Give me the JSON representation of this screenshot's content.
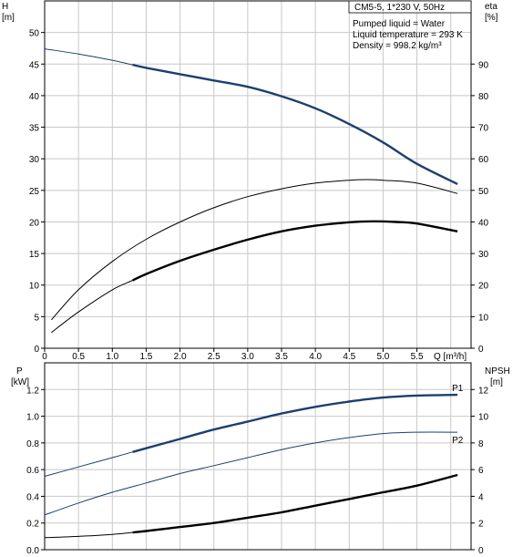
{
  "info_box": {
    "title": "CM5-5, 1*230 V, 50Hz",
    "line1": "Pumped liquid = Water",
    "line2": "Liquid temperature = 293 K",
    "line3": "Density = 998.2 kg/m³"
  },
  "chart_data": [
    {
      "type": "line",
      "panel": "upper",
      "xlabel": "Q [m³/h]",
      "ylabel": "H\n[m]",
      "y2label": "eta\n[%]",
      "xlim": [
        0,
        6.3
      ],
      "ylim": [
        0,
        55
      ],
      "y2lim": [
        0,
        110
      ],
      "xticks": [
        "0",
        "0.5",
        "1.0",
        "1.5",
        "2.0",
        "2.5",
        "3.0",
        "3.5",
        "4.0",
        "4.5",
        "5.0",
        "5.5"
      ],
      "yticks": [
        "0",
        "5",
        "10",
        "15",
        "20",
        "25",
        "30",
        "35",
        "40",
        "45",
        "50"
      ],
      "y2ticks": [
        "0",
        "10",
        "20",
        "30",
        "40",
        "50",
        "60",
        "70",
        "80",
        "90"
      ],
      "grid": true,
      "series": [
        {
          "axis": "left",
          "color": "#1c3f6e",
          "x": [
            0,
            0.5,
            1.0,
            1.5,
            2.0,
            2.5,
            3.0,
            3.5,
            4.0,
            4.5,
            5.0,
            5.5,
            6.1
          ],
          "y": [
            47.4,
            46.6,
            45.6,
            44.4,
            43.4,
            42.4,
            41.4,
            39.9,
            38.0,
            35.5,
            32.6,
            29.2,
            26.0
          ],
          "thick_from": 1.3
        },
        {
          "axis": "right",
          "color": "#000000",
          "x": [
            0.1,
            0.5,
            1.0,
            1.5,
            2.0,
            2.5,
            3.0,
            3.5,
            4.0,
            4.5,
            4.75,
            5.0,
            5.5,
            6.1
          ],
          "y": [
            9,
            18.5,
            27.5,
            34.5,
            40,
            44.5,
            48,
            50.5,
            52.3,
            53.2,
            53.4,
            53.2,
            52.3,
            49
          ],
          "thick": false
        },
        {
          "axis": "right",
          "color": "#000000",
          "x": [
            0.1,
            0.5,
            1.0,
            1.3,
            1.5,
            2.0,
            2.5,
            3.0,
            3.5,
            4.0,
            4.5,
            4.85,
            5.2,
            5.5,
            6.1
          ],
          "y": [
            5,
            11.5,
            18.5,
            21.5,
            23.5,
            27.7,
            31.2,
            34.4,
            37,
            38.8,
            39.9,
            40.2,
            40.0,
            39.5,
            37
          ],
          "thick_from": 1.3
        }
      ]
    },
    {
      "type": "line",
      "panel": "lower",
      "ylabel": "P\n[kW]",
      "y2label": "NPSH\n[m]",
      "xlim": [
        0,
        6.3
      ],
      "ylim": [
        0,
        1.4
      ],
      "y2lim": [
        0,
        14
      ],
      "yticks": [
        "0.0",
        "0.2",
        "0.4",
        "0.6",
        "0.8",
        "1.0",
        "1.2"
      ],
      "y2ticks": [
        "0",
        "2",
        "4",
        "6",
        "8",
        "10",
        "12"
      ],
      "grid": true,
      "series": [
        {
          "name": "P1",
          "axis": "left",
          "color": "#1c3f6e",
          "x": [
            0,
            0.5,
            1.0,
            1.5,
            2.0,
            2.5,
            3.0,
            3.5,
            4.0,
            4.5,
            5.0,
            5.5,
            6.1
          ],
          "y": [
            0.55,
            0.62,
            0.69,
            0.76,
            0.83,
            0.9,
            0.96,
            1.02,
            1.07,
            1.11,
            1.14,
            1.155,
            1.16
          ],
          "thick_from": 1.3
        },
        {
          "name": "P2",
          "axis": "left",
          "color": "#1c3f6e",
          "x": [
            0,
            0.5,
            1.0,
            1.5,
            2.0,
            2.5,
            3.0,
            3.5,
            4.0,
            4.5,
            5.0,
            5.5,
            6.1
          ],
          "y": [
            0.26,
            0.35,
            0.43,
            0.5,
            0.57,
            0.63,
            0.69,
            0.75,
            0.8,
            0.84,
            0.87,
            0.88,
            0.88
          ],
          "thick": false
        },
        {
          "axis": "right",
          "color": "#000000",
          "x": [
            0,
            0.5,
            1.0,
            1.5,
            2.0,
            2.5,
            3.0,
            3.5,
            4.0,
            4.5,
            5.0,
            5.5,
            6.1
          ],
          "y": [
            0.9,
            1.0,
            1.15,
            1.4,
            1.7,
            2.0,
            2.4,
            2.8,
            3.3,
            3.8,
            4.3,
            4.8,
            5.6
          ],
          "thick_from": 1.3
        }
      ]
    }
  ]
}
